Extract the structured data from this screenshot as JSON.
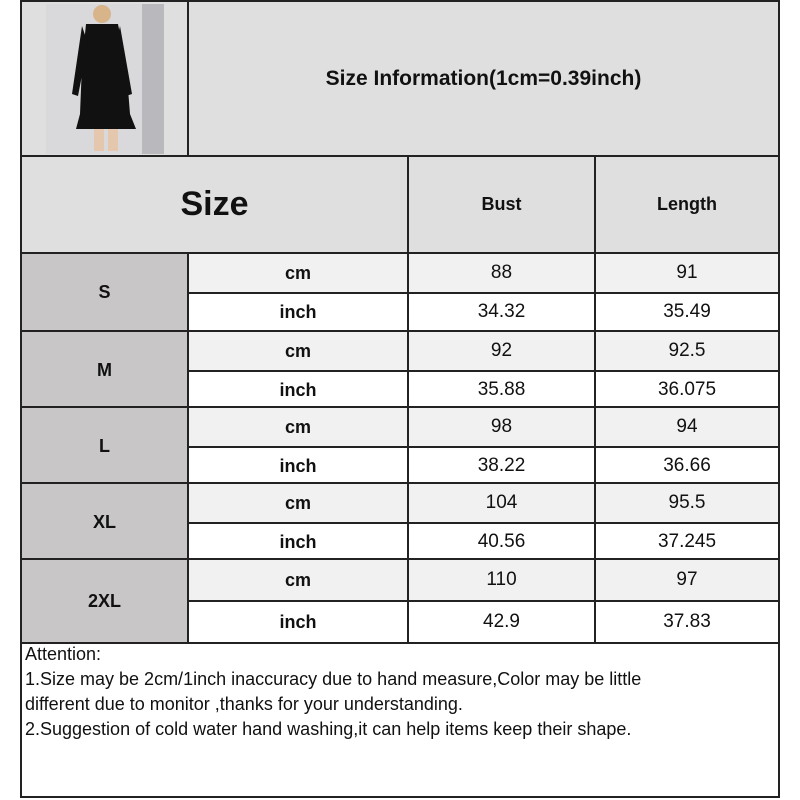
{
  "header": {
    "title": "Size Information(1cm=0.39inch)",
    "size_label": "Size",
    "columns": [
      "Bust",
      "Length"
    ]
  },
  "product_image": {
    "description_icon": "dress-photo"
  },
  "rows": [
    {
      "size": "S",
      "cm_label": "cm",
      "inch_label": "inch",
      "cm": [
        "88",
        "91"
      ],
      "inch": [
        "34.32",
        "35.49"
      ]
    },
    {
      "size": "M",
      "cm_label": "cm",
      "inch_label": "inch",
      "cm": [
        "92",
        "92.5"
      ],
      "inch": [
        "35.88",
        "36.075"
      ]
    },
    {
      "size": "L",
      "cm_label": "cm",
      "inch_label": "inch",
      "cm": [
        "98",
        "94"
      ],
      "inch": [
        "38.22",
        "36.66"
      ]
    },
    {
      "size": "XL",
      "cm_label": "cm",
      "inch_label": "inch",
      "cm": [
        "104",
        "95.5"
      ],
      "inch": [
        "40.56",
        "37.245"
      ]
    },
    {
      "size": "2XL",
      "cm_label": "cm",
      "inch_label": "inch",
      "cm": [
        "110",
        "97"
      ],
      "inch": [
        "42.9",
        "37.83"
      ]
    }
  ],
  "attention": {
    "heading": "Attention:",
    "lines": [
      "1.Size may be 2cm/1inch inaccuracy due to hand measure,Color may be little",
      "different due to monitor ,thanks for your understanding.",
      "2.Suggestion of cold water hand washing,it can help items keep their shape."
    ]
  },
  "colors": {
    "header_bg": "#e0dfe0",
    "size_bg": "#c8c6c7",
    "cm_row_bg": "#f1f1f1",
    "border": "#222222"
  }
}
